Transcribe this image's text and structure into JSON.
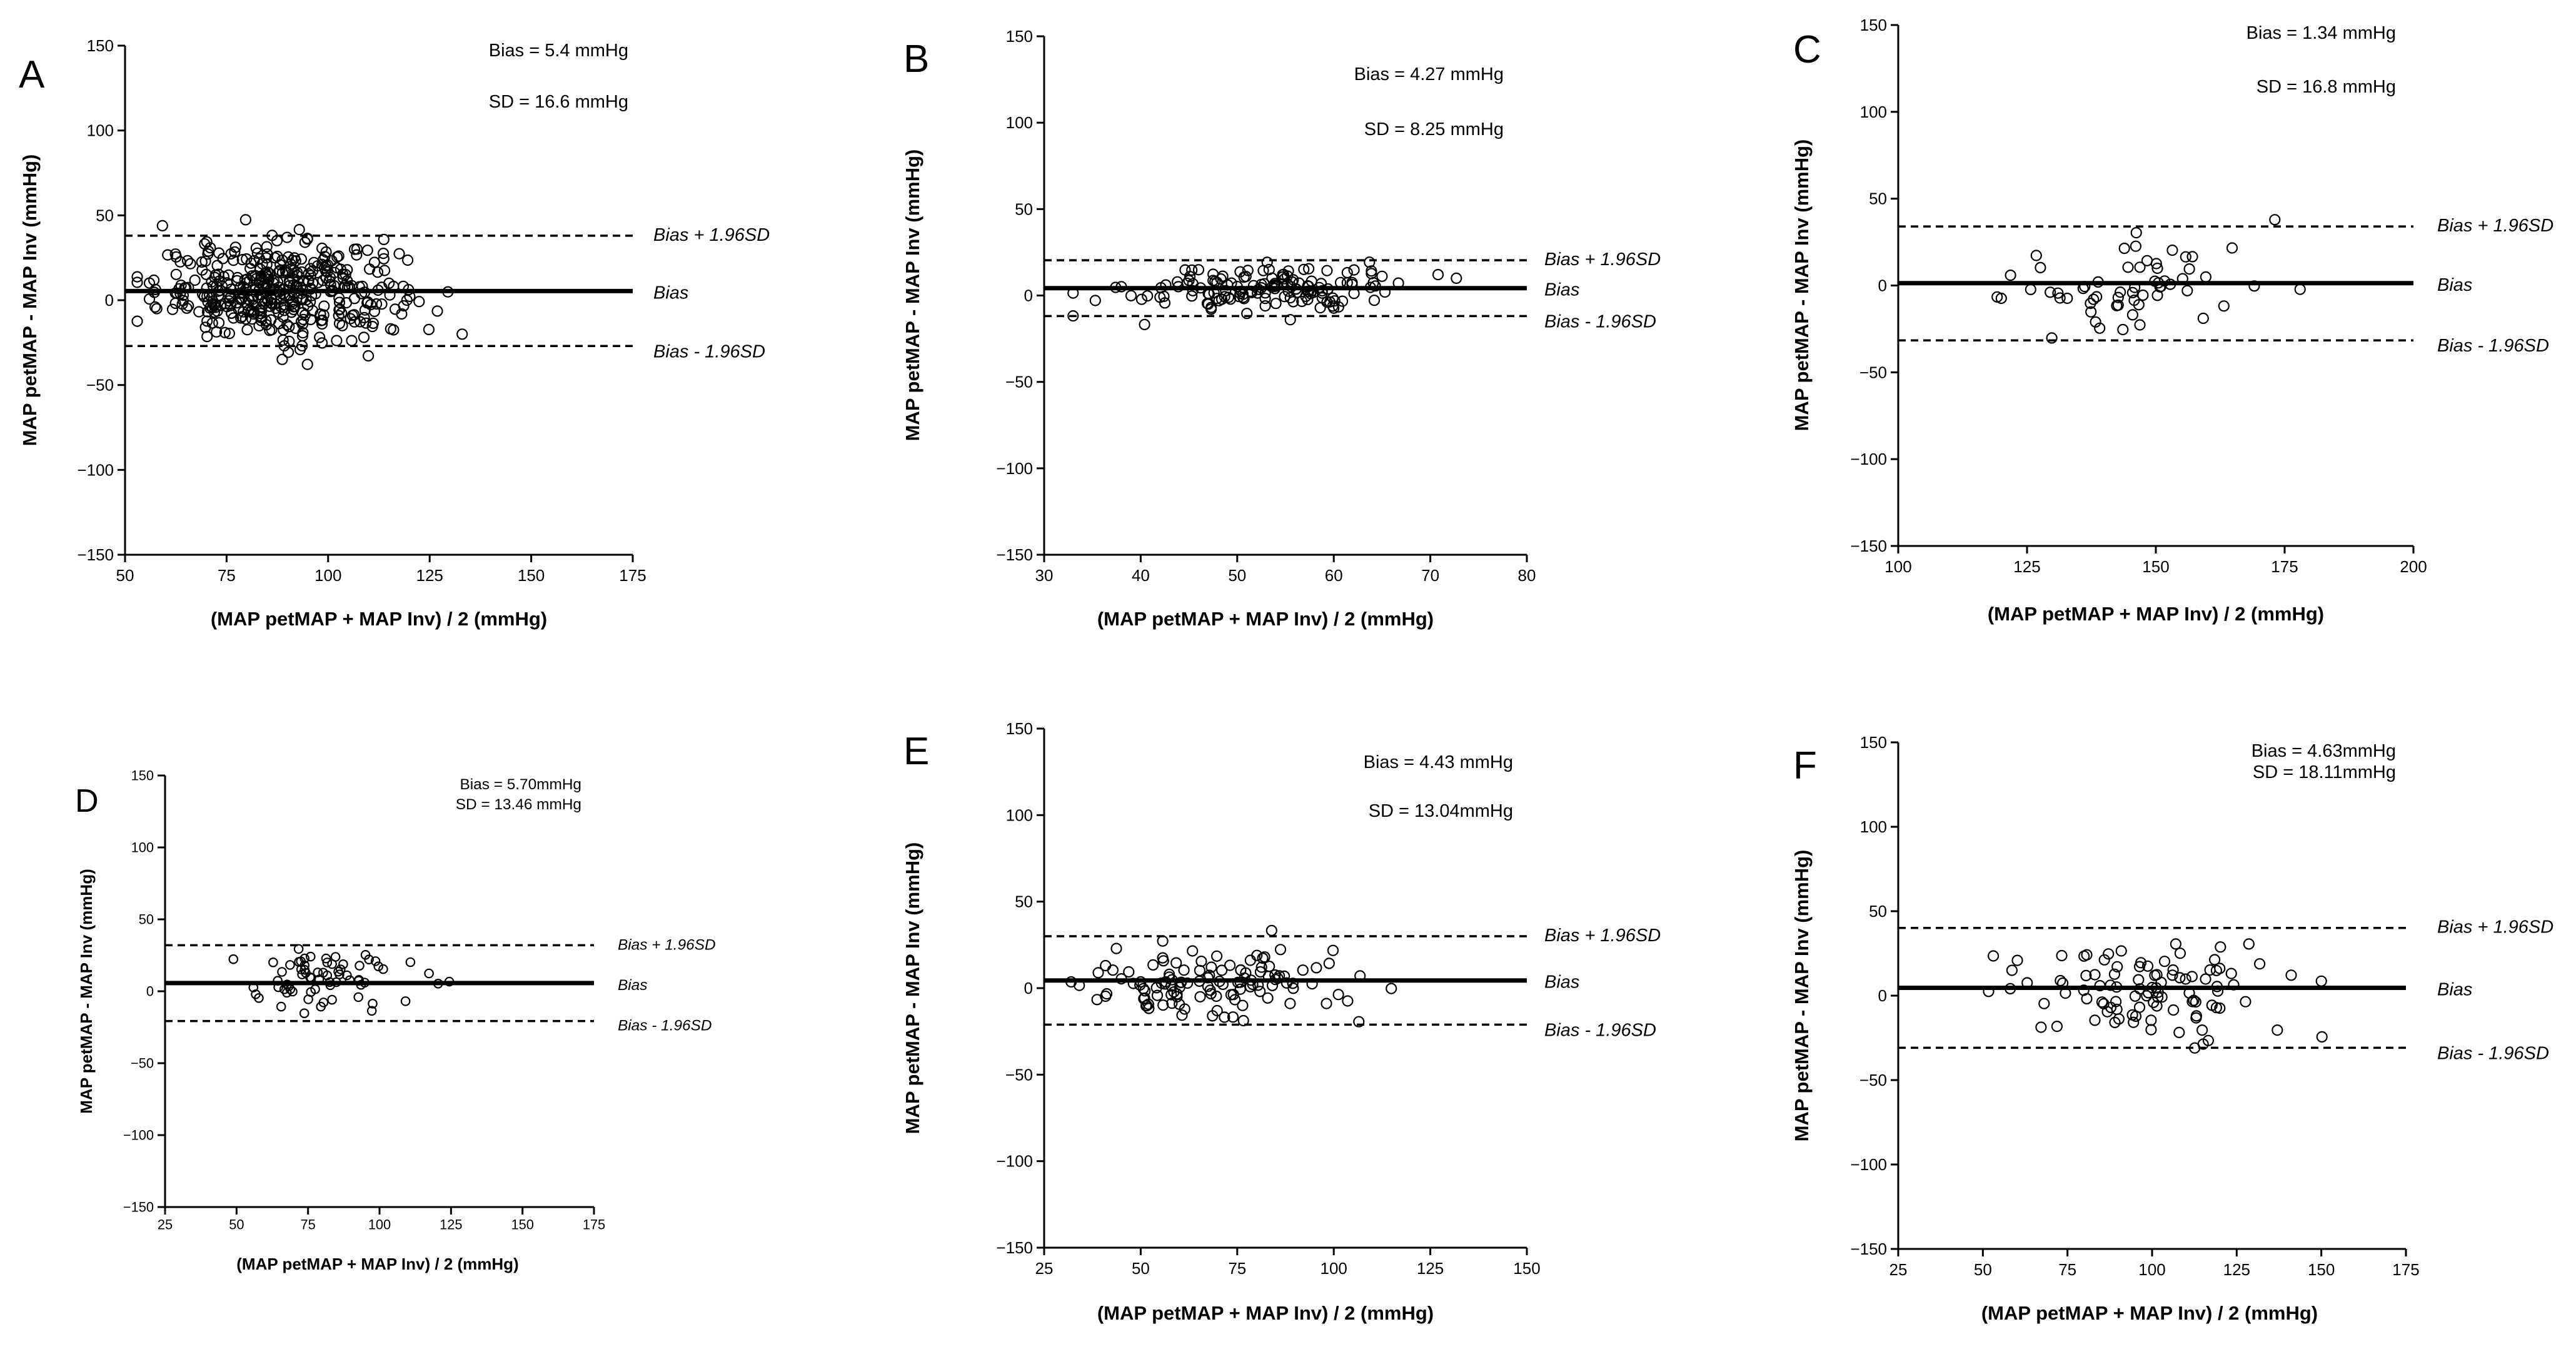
{
  "chart_data": [
    {
      "type": "scatter",
      "panel_label": "A",
      "xlabel": "(MAP petMAP + MAP Inv) / 2 (mmHg)",
      "ylabel": "MAP petMAP - MAP Inv (mmHg)",
      "xlim": [
        50,
        175
      ],
      "ylim": [
        -150,
        150
      ],
      "xticks": [
        50,
        75,
        100,
        125,
        150,
        175
      ],
      "yticks": [
        -150,
        -100,
        -50,
        0,
        50,
        100,
        150
      ],
      "bias": 5.4,
      "upper_loa": 38,
      "lower_loa": -27,
      "annotations": [
        "Bias = 5.4 mmHg",
        "SD = 16.6 mmHg"
      ],
      "line_labels": {
        "upper": "Bias + 1.96SD",
        "bias": "Bias",
        "lower": "Bias - 1.96SD"
      },
      "n_points": 420,
      "x": [],
      "y": []
    },
    {
      "type": "scatter",
      "panel_label": "B",
      "xlabel": "(MAP petMAP + MAP Inv) / 2 (mmHg)",
      "ylabel": "MAP petMAP - MAP Inv (mmHg)",
      "xlim": [
        30,
        80
      ],
      "ylim": [
        -150,
        150
      ],
      "xticks": [
        30,
        40,
        50,
        60,
        70,
        80
      ],
      "yticks": [
        -150,
        -100,
        -50,
        0,
        50,
        100,
        150
      ],
      "bias": 4.27,
      "upper_loa": 20.4,
      "lower_loa": -11.9,
      "annotations": [
        "Bias = 4.27 mmHg",
        "SD = 8.25 mmHg"
      ],
      "line_labels": {
        "upper": "Bias + 1.96SD",
        "bias": "Bias",
        "lower": "Bias - 1.96SD"
      },
      "n_points": 150,
      "x": [],
      "y": []
    },
    {
      "type": "scatter",
      "panel_label": "C",
      "xlabel": "(MAP petMAP + MAP Inv) / 2 (mmHg)",
      "ylabel": "MAP petMAP - MAP Inv (mmHg)",
      "xlim": [
        100,
        200
      ],
      "ylim": [
        -150,
        150
      ],
      "xticks": [
        100,
        125,
        150,
        175,
        200
      ],
      "yticks": [
        -150,
        -100,
        -50,
        0,
        50,
        100,
        150
      ],
      "bias": 1.34,
      "upper_loa": 34,
      "lower_loa": -31.6,
      "annotations": [
        "Bias = 1.34 mmHg",
        "SD = 16.8 mmHg"
      ],
      "line_labels": {
        "upper": "Bias + 1.96SD",
        "bias": "Bias",
        "lower": "Bias - 1.96SD"
      },
      "n_points": 60,
      "x": [],
      "y": []
    },
    {
      "type": "scatter",
      "panel_label": "D",
      "xlabel": "(MAP petMAP + MAP Inv) / 2 (mmHg)",
      "ylabel": "MAP petMAP - MAP Inv (mmHg)",
      "xlim": [
        25,
        175
      ],
      "ylim": [
        -150,
        150
      ],
      "xticks": [
        25,
        50,
        75,
        100,
        125,
        150,
        175
      ],
      "yticks": [
        -150,
        -100,
        -50,
        0,
        50,
        100,
        150
      ],
      "bias": 5.7,
      "upper_loa": 32,
      "lower_loa": -20.7,
      "annotations": [
        "Bias = 5.70mmHg",
        "SD = 13.46 mmHg"
      ],
      "line_labels": {
        "upper": "Bias + 1.96SD",
        "bias": "Bias",
        "lower": "Bias - 1.96SD"
      },
      "n_points": 70,
      "x": [],
      "y": []
    },
    {
      "type": "scatter",
      "panel_label": "E",
      "xlabel": "(MAP petMAP + MAP Inv) / 2 (mmHg)",
      "ylabel": "MAP petMAP - MAP Inv (mmHg)",
      "xlim": [
        25,
        150
      ],
      "ylim": [
        -150,
        150
      ],
      "xticks": [
        25,
        50,
        75,
        100,
        125,
        150
      ],
      "yticks": [
        -150,
        -100,
        -50,
        0,
        50,
        100,
        150
      ],
      "bias": 4.43,
      "upper_loa": 30,
      "lower_loa": -21.1,
      "annotations": [
        "Bias = 4.43 mmHg",
        "SD = 13.04mmHg"
      ],
      "line_labels": {
        "upper": "Bias + 1.96SD",
        "bias": "Bias",
        "lower": "Bias - 1.96SD"
      },
      "n_points": 120,
      "x": [],
      "y": []
    },
    {
      "type": "scatter",
      "panel_label": "F",
      "xlabel": "(MAP petMAP + MAP Inv) / 2 (mmHg)",
      "ylabel": "MAP petMAP - MAP Inv (mmHg)",
      "xlim": [
        25,
        175
      ],
      "ylim": [
        -150,
        150
      ],
      "xticks": [
        25,
        50,
        75,
        100,
        125,
        150,
        175
      ],
      "yticks": [
        -150,
        -100,
        -50,
        0,
        50,
        100,
        150
      ],
      "bias": 4.63,
      "upper_loa": 40.1,
      "lower_loa": -30.9,
      "annotations": [
        "Bias = 4.63mmHg",
        "SD = 18.11mmHg"
      ],
      "line_labels": {
        "upper": "Bias + 1.96SD",
        "bias": "Bias",
        "lower": "Bias - 1.96SD"
      },
      "n_points": 100,
      "x": [],
      "y": []
    }
  ]
}
